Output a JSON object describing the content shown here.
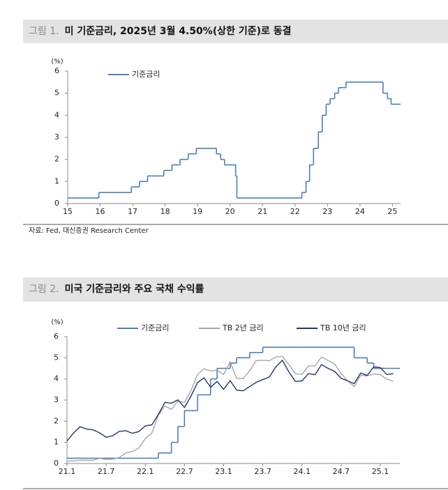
{
  "chart_data": [
    {
      "type": "line",
      "label": "그림 1.",
      "title": "미 기준금리, 2025년 3월 4.50%(상한 기준)로 동결",
      "y_label": "(%)",
      "source": "자료: Fed, 대신증권 Research Center",
      "x": [
        15,
        15.96,
        16.96,
        17.21,
        17.46,
        17.96,
        18.21,
        18.46,
        18.71,
        18.96,
        19.58,
        19.71,
        19.83,
        20.17,
        20.21,
        22.21,
        22.34,
        22.45,
        22.57,
        22.72,
        22.84,
        22.96,
        23.08,
        23.22,
        23.34,
        23.57,
        24.71,
        24.85,
        24.96
      ],
      "series": [
        {
          "name": "기준금리",
          "color": "#4a7ebb",
          "step": true,
          "values": [
            0.25,
            0.5,
            0.75,
            1.0,
            1.25,
            1.5,
            1.75,
            2.0,
            2.25,
            2.5,
            2.25,
            2.0,
            1.75,
            1.25,
            0.25,
            0.5,
            1.0,
            1.75,
            2.5,
            3.25,
            4.0,
            4.5,
            4.75,
            5.0,
            5.25,
            5.5,
            5.0,
            4.75,
            4.5
          ]
        }
      ],
      "xlim": [
        15,
        25.25
      ],
      "xticks": [
        15,
        16,
        17,
        18,
        19,
        20,
        21,
        22,
        23,
        24,
        25
      ],
      "ylim": [
        0,
        6
      ],
      "yticks": [
        0,
        1,
        2,
        3,
        4,
        5,
        6
      ]
    },
    {
      "type": "line",
      "label": "그림 2.",
      "title": "미국 기준금리와 주요 국채 수익률",
      "y_label": "(%)",
      "x": [
        "2021-01",
        "2021-02",
        "2021-03",
        "2021-04",
        "2021-05",
        "2021-06",
        "2021-07",
        "2021-08",
        "2021-09",
        "2021-10",
        "2021-11",
        "2021-12",
        "2022-01",
        "2022-02",
        "2022-03",
        "2022-04",
        "2022-05",
        "2022-06",
        "2022-07",
        "2022-08",
        "2022-09",
        "2022-10",
        "2022-11",
        "2022-12",
        "2023-01",
        "2023-02",
        "2023-03",
        "2023-04",
        "2023-05",
        "2023-06",
        "2023-07",
        "2023-08",
        "2023-09",
        "2023-10",
        "2023-11",
        "2023-12",
        "2024-01",
        "2024-02",
        "2024-03",
        "2024-04",
        "2024-05",
        "2024-06",
        "2024-07",
        "2024-08",
        "2024-09",
        "2024-10",
        "2024-11",
        "2024-12",
        "2025-01",
        "2025-02",
        "2025-03"
      ],
      "series": [
        {
          "name": "기준금리",
          "color": "#4a7ebb",
          "step": true,
          "values": [
            0.25,
            0.25,
            0.25,
            0.25,
            0.25,
            0.25,
            0.25,
            0.25,
            0.25,
            0.25,
            0.25,
            0.25,
            0.25,
            0.25,
            0.5,
            0.5,
            1.0,
            1.75,
            2.5,
            2.5,
            3.25,
            3.25,
            4.0,
            4.5,
            4.5,
            4.75,
            5.0,
            5.0,
            5.25,
            5.25,
            5.5,
            5.5,
            5.5,
            5.5,
            5.5,
            5.5,
            5.5,
            5.5,
            5.5,
            5.5,
            5.5,
            5.5,
            5.5,
            5.5,
            5.0,
            5.0,
            4.75,
            4.5,
            4.5,
            4.5,
            4.5
          ]
        },
        {
          "name": "TB 2년 금리",
          "color": "#a6a6a6",
          "values": [
            0.11,
            0.12,
            0.16,
            0.16,
            0.15,
            0.25,
            0.19,
            0.21,
            0.28,
            0.5,
            0.57,
            0.73,
            1.18,
            1.44,
            2.28,
            2.72,
            2.56,
            2.95,
            2.89,
            3.45,
            4.22,
            4.48,
            4.38,
            4.41,
            4.21,
            4.81,
            4.03,
            4.01,
            4.4,
            4.87,
            4.88,
            4.86,
            5.04,
            5.07,
            4.68,
            4.25,
            4.21,
            4.62,
            4.62,
            5.04,
            4.87,
            4.71,
            4.26,
            3.91,
            3.64,
            4.17,
            4.15,
            4.24,
            4.2,
            3.99,
            3.89
          ]
        },
        {
          "name": "TB 10년 금리",
          "color": "#1f3864",
          "values": [
            1.07,
            1.44,
            1.74,
            1.63,
            1.59,
            1.45,
            1.24,
            1.31,
            1.52,
            1.55,
            1.43,
            1.51,
            1.78,
            1.83,
            2.32,
            2.89,
            2.85,
            3.01,
            2.65,
            3.19,
            3.83,
            4.05,
            3.61,
            3.88,
            3.51,
            3.92,
            3.47,
            3.44,
            3.64,
            3.84,
            3.97,
            4.09,
            4.57,
            4.88,
            4.33,
            3.88,
            3.91,
            4.25,
            4.2,
            4.68,
            4.5,
            4.36,
            4.03,
            3.91,
            3.78,
            4.28,
            4.17,
            4.57,
            4.54,
            4.21,
            4.25
          ]
        }
      ],
      "xlim": [
        "2021-01",
        "2025-04"
      ],
      "xticks": [
        {
          "value": "2021-01",
          "label": "21.1"
        },
        {
          "value": "2021-07",
          "label": "21.7"
        },
        {
          "value": "2022-01",
          "label": "22.1"
        },
        {
          "value": "2022-07",
          "label": "22.7"
        },
        {
          "value": "2023-01",
          "label": "23.1"
        },
        {
          "value": "2023-07",
          "label": "23.7"
        },
        {
          "value": "2024-01",
          "label": "24.1"
        },
        {
          "value": "2024-07",
          "label": "24.7"
        },
        {
          "value": "2025-01",
          "label": "25.1"
        }
      ],
      "ylim": [
        0,
        6
      ],
      "yticks": [
        0,
        1,
        2,
        3,
        4,
        5,
        6
      ]
    }
  ]
}
